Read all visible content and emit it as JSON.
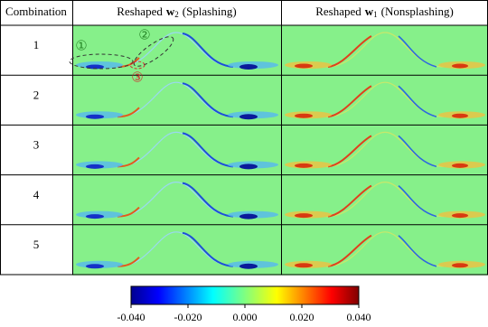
{
  "header": {
    "label_column": "Combination",
    "columns": [
      {
        "prefix": "Reshaped",
        "symbol": "w",
        "subscript": "2",
        "suffix": "(Splashing)"
      },
      {
        "prefix": "Reshaped",
        "symbol": "w",
        "subscript": "1",
        "suffix": "(Nonsplashing)"
      }
    ]
  },
  "rows": [
    "1",
    "2",
    "3",
    "4",
    "5"
  ],
  "annotations": [
    "①",
    "②",
    "③"
  ],
  "colorbar": {
    "lim": [
      -0.04,
      0.04
    ],
    "ticks": [
      {
        "value": -0.04,
        "label": "-0.040"
      },
      {
        "value": -0.02,
        "label": "-0.020"
      },
      {
        "value": 0,
        "label": "0.000"
      },
      {
        "value": 0.02,
        "label": "0.020"
      },
      {
        "value": 0.04,
        "label": "0.040"
      }
    ]
  }
}
